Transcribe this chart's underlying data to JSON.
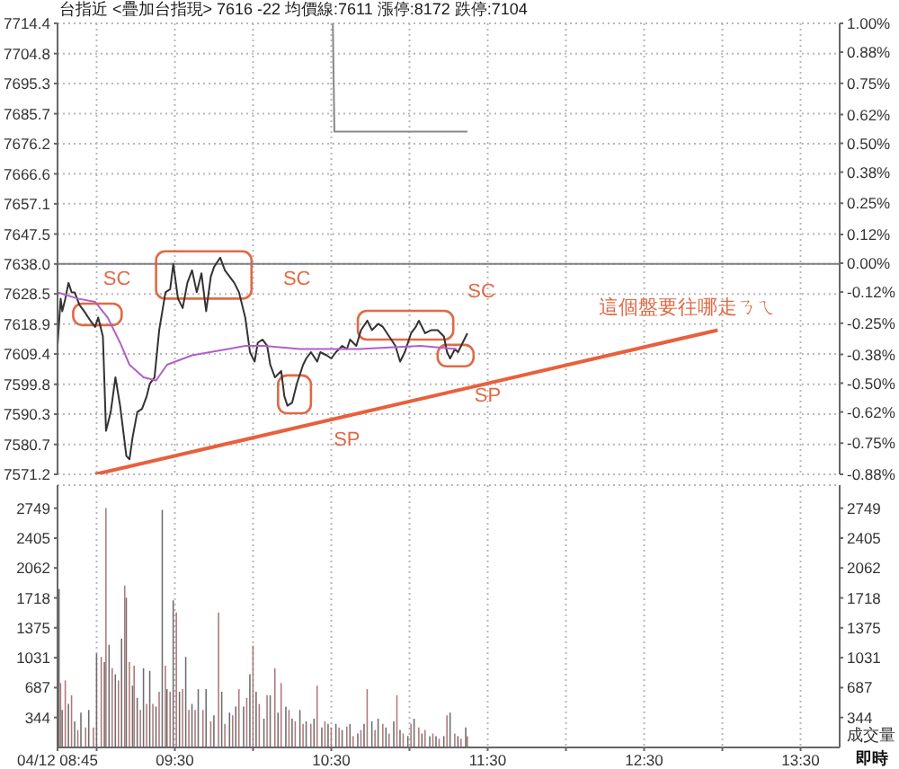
{
  "chart_data": [
    {
      "type": "line",
      "title": "台指近 <疊加台指現> 7616 -22 均價線:7611 漲停:8172 跌停:7104",
      "xlim": [
        8.75,
        13.75
      ],
      "xticks": [
        9,
        9.5,
        10,
        10.5,
        11,
        11.5,
        12,
        12.5,
        13,
        13.5
      ],
      "ylim": [
        7571.2,
        7714.4
      ],
      "yticks": [
        7714.4,
        7704.8,
        7695.3,
        7685.7,
        7676.2,
        7666.6,
        7657.1,
        7647.5,
        {
          "value": 7638,
          "label": "7638.0"
        },
        7628.5,
        7618.9,
        7609.4,
        7599.8,
        7590.3,
        7580.7,
        7571.2
      ],
      "y2lim": [
        -0.88,
        1.0
      ],
      "y2ticks": [
        {
          "value": 1.0,
          "label": "1.00%"
        },
        {
          "value": 0.88,
          "label": "0.88%"
        },
        {
          "value": 0.75,
          "label": "0.75%"
        },
        {
          "value": 0.62,
          "label": "0.62%"
        },
        {
          "value": 0.5,
          "label": "0.50%"
        },
        {
          "value": 0.38,
          "label": "0.38%"
        },
        {
          "value": 0.25,
          "label": "0.25%"
        },
        {
          "value": 0.12,
          "label": "0.12%"
        },
        {
          "value": 0,
          "label": "0.00%"
        },
        {
          "value": -0.12,
          "label": "-0.12%"
        },
        {
          "value": -0.25,
          "label": "-0.25%"
        },
        {
          "value": -0.38,
          "label": "-0.38%"
        },
        {
          "value": -0.5,
          "label": "-0.50%"
        },
        {
          "value": -0.62,
          "label": "-0.62%"
        },
        {
          "value": -0.75,
          "label": "-0.75%"
        },
        {
          "value": -0.88,
          "label": "-0.88%"
        }
      ],
      "tick_labels": "y",
      "grid": true,
      "ref_lines": [
        {
          "axis": "y",
          "value": 7638,
          "color": "#808080"
        }
      ],
      "series": [
        {
          "color": "#333333",
          "x": [
            8.75,
            8.77,
            8.78,
            8.8,
            8.82,
            8.84,
            8.86,
            8.89,
            8.92,
            8.96,
            8.99,
            9.01,
            9.04,
            9.06,
            9.09,
            9.12,
            9.15,
            9.19,
            9.21,
            9.23,
            9.26,
            9.29,
            9.32,
            9.34,
            9.37,
            9.4,
            9.44,
            9.47,
            9.49,
            9.52,
            9.55,
            9.58,
            9.61,
            9.64,
            9.67,
            9.7,
            9.73,
            9.75,
            9.79,
            9.82,
            9.85,
            9.88,
            9.91,
            9.95,
            9.98,
            10.01,
            10.03,
            10.06,
            10.09,
            10.11,
            10.14,
            10.18,
            10.2,
            10.22,
            10.25,
            10.28,
            10.32,
            10.34,
            10.37,
            10.41,
            10.43,
            10.47,
            10.5,
            10.53,
            10.57,
            10.6,
            10.62,
            10.66,
            10.69,
            10.73,
            10.76,
            10.8,
            10.83,
            10.87,
            10.91,
            10.94,
            10.97,
            11.01,
            11.04,
            11.06,
            11.1,
            11.14,
            11.18,
            11.22,
            11.24,
            11.26,
            11.29,
            11.31,
            11.35,
            11.37
          ],
          "values": [
            7612,
            7627,
            7623,
            7627,
            7632,
            7629,
            7629,
            7625,
            7623,
            7620,
            7618,
            7621,
            7615,
            7585,
            7591,
            7602,
            7593,
            7577,
            7576,
            7583,
            7591,
            7592,
            7596,
            7600,
            7602,
            7617,
            7629,
            7630,
            7638,
            7627,
            7624,
            7632,
            7636,
            7629,
            7635,
            7623,
            7634,
            7637,
            7640,
            7636,
            7634,
            7632,
            7629,
            7621,
            7610,
            7607,
            7613,
            7614,
            7612,
            7606,
            7602,
            7604,
            7596,
            7593,
            7594,
            7600,
            7606,
            7608,
            7610,
            7607,
            7610,
            7609,
            7608,
            7610,
            7612,
            7611,
            7614,
            7612,
            7617,
            7620,
            7617,
            7619,
            7618,
            7615,
            7612,
            7607,
            7610,
            7616,
            7618,
            7620,
            7616,
            7617,
            7617,
            7615,
            7610,
            7608,
            7611,
            7610,
            7614,
            7616
          ]
        },
        {
          "color": "#b060c8",
          "x": [
            8.75,
            8.88,
            8.99,
            9.07,
            9.15,
            9.21,
            9.3,
            9.38,
            9.45,
            9.61,
            9.84,
            9.95,
            10.07,
            10.3,
            10.68,
            11.07,
            11.3
          ],
          "values": [
            7629,
            7627,
            7626,
            7621,
            7613,
            7606,
            7602,
            7601,
            7606,
            7609,
            7611,
            7612,
            7612,
            7611,
            7611,
            7612,
            7611
          ]
        },
        {
          "color": "#888888",
          "x": [
            10.51,
            10.52,
            11.37
          ],
          "values": [
            7714.4,
            7680,
            7680
          ]
        },
        {
          "type": "line",
          "color": "#e8603c",
          "x": [
            8.99,
            12.97
          ],
          "values": [
            7571.2,
            7617
          ]
        }
      ],
      "annotations": [
        "SC",
        "SC",
        "SC",
        "SP",
        "SP",
        "這個盤要往哪走ㄋㄟ"
      ]
    },
    {
      "type": "bar",
      "xlabel": "即時",
      "y2label": "成交量",
      "xlim": [
        8.75,
        13.75
      ],
      "xticks": [
        {
          "value": 8.75,
          "label": "04/12 08:45"
        },
        {
          "value": 9,
          "label": null
        },
        {
          "value": 9.5,
          "label": "09:30"
        },
        {
          "value": 10,
          "label": null
        },
        {
          "value": 10.5,
          "label": "10:30"
        },
        {
          "value": 11,
          "label": null
        },
        {
          "value": 11.5,
          "label": "11:30"
        },
        {
          "value": 12,
          "label": null
        },
        {
          "value": 12.5,
          "label": "12:30"
        },
        {
          "value": 13,
          "label": null
        },
        {
          "value": 13.5,
          "label": "13:30"
        }
      ],
      "ylim": [
        0,
        3014
      ],
      "yticks": [
        344,
        687,
        1031,
        1375,
        1718,
        2062,
        2405,
        2749
      ],
      "y2lim": [
        0,
        3014
      ],
      "y2ticks": [
        344,
        687,
        1031,
        1375,
        1718,
        2062,
        2405,
        2749
      ],
      "grid": true,
      "x": [
        8.76,
        8.77,
        8.78,
        8.8,
        8.82,
        8.84,
        8.86,
        8.88,
        8.9,
        8.93,
        8.95,
        8.98,
        9.0,
        9.03,
        9.05,
        9.06,
        9.08,
        9.1,
        9.12,
        9.14,
        9.16,
        9.18,
        9.19,
        9.21,
        9.23,
        9.24,
        9.26,
        9.28,
        9.3,
        9.32,
        9.34,
        9.36,
        9.38,
        9.4,
        9.42,
        9.44,
        9.45,
        9.47,
        9.49,
        9.51,
        9.53,
        9.55,
        9.57,
        9.59,
        9.61,
        9.63,
        9.65,
        9.68,
        9.7,
        9.73,
        9.75,
        9.78,
        9.8,
        9.82,
        9.85,
        9.87,
        9.89,
        9.91,
        9.94,
        9.96,
        9.98,
        10.0,
        10.02,
        10.04,
        10.07,
        10.09,
        10.11,
        10.14,
        10.16,
        10.18,
        10.21,
        10.23,
        10.25,
        10.27,
        10.3,
        10.32,
        10.34,
        10.37,
        10.39,
        10.41,
        10.44,
        10.46,
        10.48,
        10.5,
        10.53,
        10.55,
        10.57,
        10.6,
        10.62,
        10.64,
        10.67,
        10.69,
        10.71,
        10.73,
        10.76,
        10.78,
        10.8,
        10.83,
        10.85,
        10.87,
        10.9,
        10.92,
        10.94,
        10.96,
        10.99,
        11.01,
        11.03,
        11.06,
        11.08,
        11.1,
        11.13,
        11.15,
        11.17,
        11.19,
        11.22,
        11.24,
        11.26,
        11.29,
        11.31,
        11.33,
        11.36,
        11.37
      ],
      "values": [
        1820,
        740,
        430,
        770,
        500,
        600,
        300,
        200,
        400,
        230,
        430,
        230,
        1080,
        1040,
        980,
        2750,
        1180,
        910,
        840,
        770,
        1250,
        1860,
        1720,
        980,
        710,
        940,
        570,
        430,
        910,
        500,
        880,
        500,
        470,
        640,
        2730,
        940,
        670,
        640,
        1690,
        1550,
        640,
        670,
        1040,
        430,
        500,
        430,
        670,
        430,
        670,
        300,
        370,
        1550,
        640,
        270,
        400,
        370,
        470,
        670,
        470,
        570,
        840,
        1170,
        640,
        500,
        330,
        600,
        600,
        910,
        400,
        740,
        470,
        430,
        330,
        300,
        430,
        270,
        300,
        270,
        330,
        710,
        230,
        300,
        270,
        230,
        270,
        230,
        200,
        240,
        270,
        130,
        160,
        200,
        270,
        670,
        300,
        200,
        330,
        270,
        230,
        160,
        300,
        600,
        200,
        160,
        130,
        270,
        330,
        230,
        160,
        200,
        130,
        160,
        130,
        100,
        130,
        370,
        400,
        160,
        130,
        100,
        230,
        130
      ],
      "colors": [
        "#6e6e6e",
        "#b07878",
        "#6e6e6e",
        "#b07878",
        "#6e6e6e",
        "#b07878",
        "#6e6e6e",
        "#b07878",
        "#6e6e6e",
        "#b07878",
        "#6e6e6e",
        "#b07878",
        "#6e6e6e",
        "#b07878",
        "#6e6e6e",
        "#b07878",
        "#6e6e6e",
        "#b07878",
        "#6e6e6e",
        "#b07878",
        "#6e6e6e",
        "#b07878",
        "#6e6e6e",
        "#b07878",
        "#6e6e6e",
        "#b07878",
        "#6e6e6e",
        "#b07878",
        "#6e6e6e",
        "#b07878",
        "#6e6e6e",
        "#b07878",
        "#6e6e6e",
        "#b07878",
        "#6e6e6e",
        "#b07878",
        "#6e6e6e",
        "#b07878",
        "#6e6e6e",
        "#b07878",
        "#6e6e6e",
        "#b07878",
        "#6e6e6e",
        "#b07878",
        "#6e6e6e",
        "#b07878",
        "#6e6e6e",
        "#b07878",
        "#6e6e6e",
        "#b07878",
        "#6e6e6e",
        "#b07878",
        "#6e6e6e",
        "#b07878",
        "#6e6e6e",
        "#b07878",
        "#6e6e6e",
        "#b07878",
        "#6e6e6e",
        "#b07878",
        "#6e6e6e",
        "#b07878",
        "#6e6e6e",
        "#b07878",
        "#6e6e6e",
        "#b07878",
        "#6e6e6e",
        "#b07878",
        "#6e6e6e",
        "#b07878",
        "#6e6e6e",
        "#b07878",
        "#6e6e6e",
        "#b07878",
        "#6e6e6e",
        "#b07878",
        "#6e6e6e",
        "#b07878",
        "#6e6e6e",
        "#b07878",
        "#6e6e6e",
        "#b07878",
        "#6e6e6e",
        "#b07878",
        "#6e6e6e",
        "#b07878",
        "#6e6e6e",
        "#b07878",
        "#6e6e6e",
        "#b07878",
        "#6e6e6e",
        "#b07878",
        "#6e6e6e",
        "#b07878",
        "#6e6e6e",
        "#b07878",
        "#6e6e6e",
        "#b07878",
        "#6e6e6e",
        "#b07878",
        "#6e6e6e",
        "#b07878",
        "#6e6e6e",
        "#b07878",
        "#6e6e6e",
        "#b07878",
        "#6e6e6e",
        "#b07878",
        "#6e6e6e",
        "#b07878",
        "#6e6e6e",
        "#b07878",
        "#6e6e6e",
        "#b07878",
        "#6e6e6e",
        "#b07878",
        "#6e6e6e",
        "#b07878",
        "#6e6e6e",
        "#b07878",
        "#6e6e6e",
        "#b07878"
      ]
    }
  ]
}
